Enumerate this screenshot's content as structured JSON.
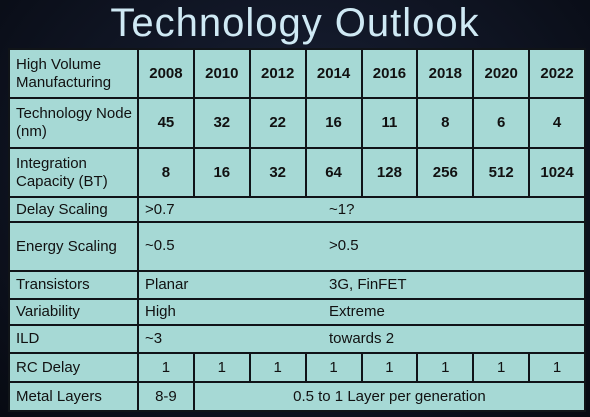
{
  "title": "Technology Outlook",
  "table": {
    "header": [
      "High Volume Manufacturing",
      "2008",
      "2010",
      "2012",
      "2014",
      "2016",
      "2018",
      "2020",
      "2022"
    ],
    "rows": [
      [
        "Technology Node (nm)",
        45,
        32,
        22,
        16,
        11,
        8,
        6,
        4
      ],
      [
        "Integration Capacity (BT)",
        8,
        16,
        32,
        64,
        128,
        256,
        512,
        1024
      ],
      [
        "Delay Scaling",
        ">0.7",
        "~1?"
      ],
      [
        "Energy Scaling",
        "~0.5",
        ">0.5"
      ],
      [
        "Transistors",
        "Planar",
        "3G, FinFET"
      ],
      [
        "Variability",
        "High",
        "Extreme"
      ],
      [
        "ILD",
        "~3",
        "towards 2"
      ],
      [
        "RC Delay",
        1,
        1,
        1,
        1,
        1,
        1,
        1,
        1
      ],
      [
        "Metal Layers",
        "8-9",
        "0.5 to 1 Layer per generation"
      ]
    ]
  }
}
